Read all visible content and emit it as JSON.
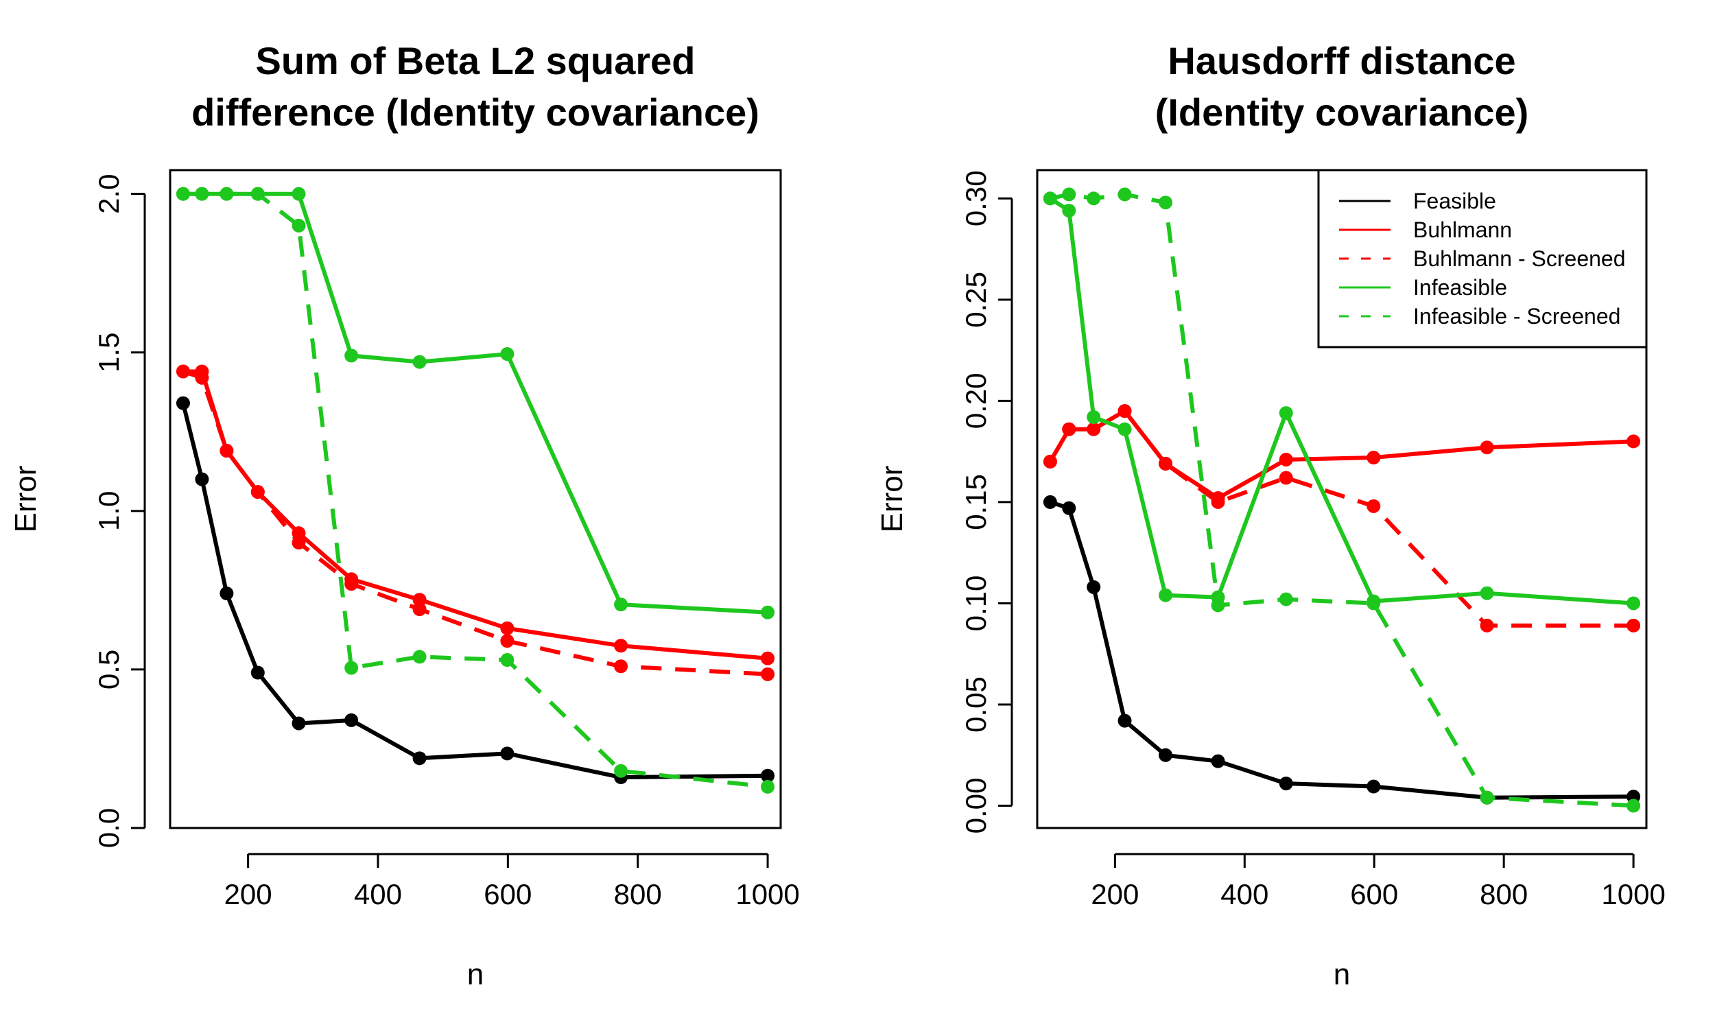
{
  "chart_data": [
    {
      "type": "line",
      "title": [
        "Sum of Beta L2 squared",
        "difference (Identity covariance)"
      ],
      "xlabel": "n",
      "ylabel": "Error",
      "xlim": [
        80,
        1020
      ],
      "ylim": [
        0,
        2.075
      ],
      "xticks": [
        200,
        400,
        600,
        800,
        1000
      ],
      "yticks": [
        0.0,
        0.5,
        1.0,
        1.5,
        2.0
      ],
      "ytick_labels": [
        "0.0",
        "0.5",
        "1.0",
        "1.5",
        "2.0"
      ],
      "legend": null,
      "series": [
        {
          "color": "#000000",
          "dash": false,
          "x": [
            100,
            129,
            167,
            215,
            278,
            359,
            464,
            599,
            774,
            1000
          ],
          "y": [
            1.34,
            1.1,
            0.74,
            0.49,
            0.33,
            0.34,
            0.22,
            0.235,
            0.16,
            0.165
          ]
        },
        {
          "color": "#ff0000",
          "dash": false,
          "x": [
            100,
            129,
            167,
            215,
            278,
            359,
            464,
            599,
            774,
            1000
          ],
          "y": [
            1.44,
            1.44,
            1.19,
            1.06,
            0.93,
            0.785,
            0.72,
            0.63,
            0.575,
            0.535
          ]
        },
        {
          "color": "#ff0000",
          "dash": true,
          "x": [
            100,
            129,
            167,
            215,
            278,
            359,
            464,
            599,
            774,
            1000
          ],
          "y": [
            1.44,
            1.42,
            1.19,
            1.06,
            0.9,
            0.77,
            0.69,
            0.59,
            0.51,
            0.485
          ]
        },
        {
          "color": "#1ec71e",
          "dash": false,
          "x": [
            100,
            129,
            167,
            215,
            278,
            359,
            464,
            599,
            774,
            1000
          ],
          "y": [
            2.0,
            2.0,
            2.0,
            2.0,
            2.0,
            1.49,
            1.47,
            1.495,
            0.705,
            0.68
          ]
        },
        {
          "color": "#1ec71e",
          "dash": true,
          "x": [
            100,
            129,
            167,
            215,
            278,
            359,
            464,
            599,
            774,
            1000
          ],
          "y": [
            2.0,
            2.0,
            2.0,
            2.0,
            1.9,
            0.505,
            0.54,
            0.53,
            0.18,
            0.13
          ]
        }
      ]
    },
    {
      "type": "line",
      "title": [
        "Hausdorff distance",
        "(Identity covariance)"
      ],
      "xlabel": "n",
      "ylabel": "Error",
      "xlim": [
        80,
        1020
      ],
      "ylim": [
        -0.011,
        0.314
      ],
      "xticks": [
        200,
        400,
        600,
        800,
        1000
      ],
      "yticks": [
        0.0,
        0.05,
        0.1,
        0.15,
        0.2,
        0.25,
        0.3
      ],
      "ytick_labels": [
        "0.00",
        "0.05",
        "0.10",
        "0.15",
        "0.20",
        "0.25",
        "0.30"
      ],
      "legend": {
        "position": "top-right",
        "entries": [
          {
            "label": "Feasible",
            "color": "#000000",
            "dash": false
          },
          {
            "label": "Buhlmann",
            "color": "#ff0000",
            "dash": false
          },
          {
            "label": "Buhlmann - Screened",
            "color": "#ff0000",
            "dash": true
          },
          {
            "label": "Infeasible",
            "color": "#1ec71e",
            "dash": false
          },
          {
            "label": "Infeasible - Screened",
            "color": "#1ec71e",
            "dash": true
          }
        ]
      },
      "series": [
        {
          "color": "#000000",
          "dash": false,
          "x": [
            100,
            129,
            167,
            215,
            278,
            359,
            464,
            599,
            774,
            1000
          ],
          "y": [
            0.15,
            0.147,
            0.108,
            0.042,
            0.025,
            0.022,
            0.011,
            0.0095,
            0.004,
            0.0045
          ]
        },
        {
          "color": "#ff0000",
          "dash": false,
          "x": [
            100,
            129,
            167,
            215,
            278,
            359,
            464,
            599,
            774,
            1000
          ],
          "y": [
            0.17,
            0.186,
            0.186,
            0.195,
            0.169,
            0.152,
            0.171,
            0.172,
            0.177,
            0.18
          ]
        },
        {
          "color": "#ff0000",
          "dash": true,
          "x": [
            100,
            129,
            167,
            215,
            278,
            359,
            464,
            599,
            774,
            1000
          ],
          "y": [
            0.17,
            0.186,
            0.186,
            0.195,
            0.169,
            0.15,
            0.162,
            0.148,
            0.089,
            0.089
          ]
        },
        {
          "color": "#1ec71e",
          "dash": false,
          "x": [
            100,
            129,
            167,
            215,
            278,
            359,
            464,
            599,
            774,
            1000
          ],
          "y": [
            0.3,
            0.294,
            0.192,
            0.186,
            0.104,
            0.103,
            0.194,
            0.101,
            0.105,
            0.1
          ]
        },
        {
          "color": "#1ec71e",
          "dash": true,
          "x": [
            100,
            129,
            167,
            215,
            278,
            359,
            464,
            599,
            774,
            1000
          ],
          "y": [
            0.3,
            0.302,
            0.3,
            0.302,
            0.298,
            0.099,
            0.102,
            0.1,
            0.004,
            0.0
          ]
        }
      ]
    }
  ]
}
